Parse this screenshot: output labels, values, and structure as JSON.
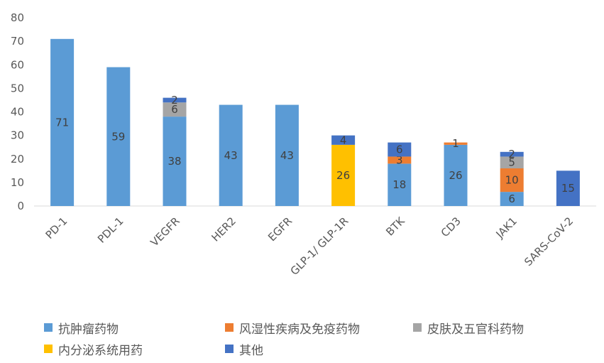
{
  "chart_data": {
    "type": "bar",
    "stacked": true,
    "categories": [
      "PD-1",
      "PDL-1",
      "VEGFR",
      "HER2",
      "EGFR",
      "GLP-1/ GLP-1R",
      "BTK",
      "CD3",
      "JAK1",
      "SARS-CoV-2"
    ],
    "series": [
      {
        "name": "抗肿瘤药物",
        "color": "#5B9BD5",
        "values": [
          71,
          59,
          38,
          43,
          43,
          0,
          18,
          26,
          6,
          0
        ]
      },
      {
        "name": "风湿性疾病及免疫药物",
        "color": "#ED7D31",
        "values": [
          0,
          0,
          0,
          0,
          0,
          0,
          3,
          1,
          10,
          0
        ]
      },
      {
        "name": "皮肤及五官科药物",
        "color": "#A5A5A5",
        "values": [
          0,
          0,
          6,
          0,
          0,
          0,
          0,
          0,
          5,
          0
        ]
      },
      {
        "name": "内分泌系统用药",
        "color": "#FFC000",
        "values": [
          0,
          0,
          0,
          0,
          0,
          26,
          0,
          0,
          0,
          0
        ]
      },
      {
        "name": "其他",
        "color": "#4472C4",
        "values": [
          0,
          0,
          2,
          0,
          0,
          4,
          6,
          0,
          2,
          15
        ]
      }
    ],
    "ylim": [
      0,
      80
    ],
    "yticks": [
      0,
      10,
      20,
      30,
      40,
      50,
      60,
      70,
      80
    ],
    "grid": false,
    "legend_position": "bottom",
    "legend_rows": [
      [
        "抗肿瘤药物",
        "风湿性疾病及免疫药物",
        "皮肤及五官科药物"
      ],
      [
        "内分泌系统用药",
        "其他"
      ]
    ]
  }
}
